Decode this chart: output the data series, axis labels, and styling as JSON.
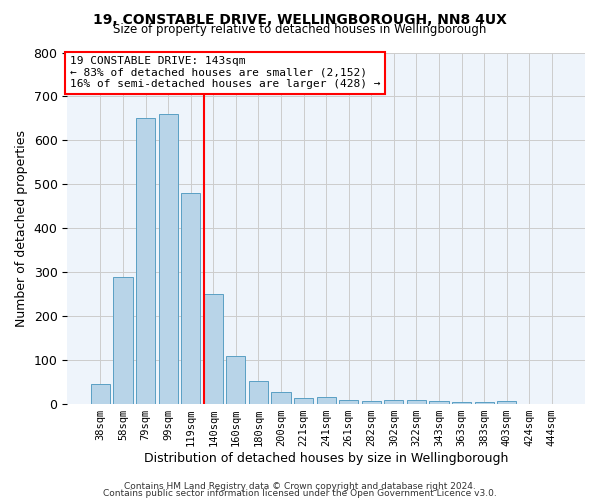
{
  "title": "19, CONSTABLE DRIVE, WELLINGBOROUGH, NN8 4UX",
  "subtitle": "Size of property relative to detached houses in Wellingborough",
  "xlabel": "Distribution of detached houses by size in Wellingborough",
  "ylabel": "Number of detached properties",
  "bar_labels": [
    "38sqm",
    "58sqm",
    "79sqm",
    "99sqm",
    "119sqm",
    "140sqm",
    "160sqm",
    "180sqm",
    "200sqm",
    "221sqm",
    "241sqm",
    "261sqm",
    "282sqm",
    "302sqm",
    "322sqm",
    "343sqm",
    "363sqm",
    "383sqm",
    "403sqm",
    "424sqm",
    "444sqm"
  ],
  "bar_values": [
    45,
    290,
    650,
    660,
    480,
    250,
    110,
    52,
    28,
    14,
    15,
    10,
    8,
    10,
    10,
    8,
    5,
    5,
    8,
    1,
    0
  ],
  "bar_color": "#b8d4e8",
  "bar_edge_color": "#5a9fc4",
  "vline_bar_index": 5,
  "vline_color": "red",
  "vline_lw": 1.5,
  "annotation_line1": "19 CONSTABLE DRIVE: 143sqm",
  "annotation_line2": "← 83% of detached houses are smaller (2,152)",
  "annotation_line3": "16% of semi-detached houses are larger (428) →",
  "annotation_box_color": "white",
  "annotation_box_edge": "red",
  "ylim": [
    0,
    800
  ],
  "yticks": [
    0,
    100,
    200,
    300,
    400,
    500,
    600,
    700,
    800
  ],
  "grid_color": "#cccccc",
  "bg_color": "#eef4fb",
  "footer1": "Contains HM Land Registry data © Crown copyright and database right 2024.",
  "footer2": "Contains public sector information licensed under the Open Government Licence v3.0."
}
